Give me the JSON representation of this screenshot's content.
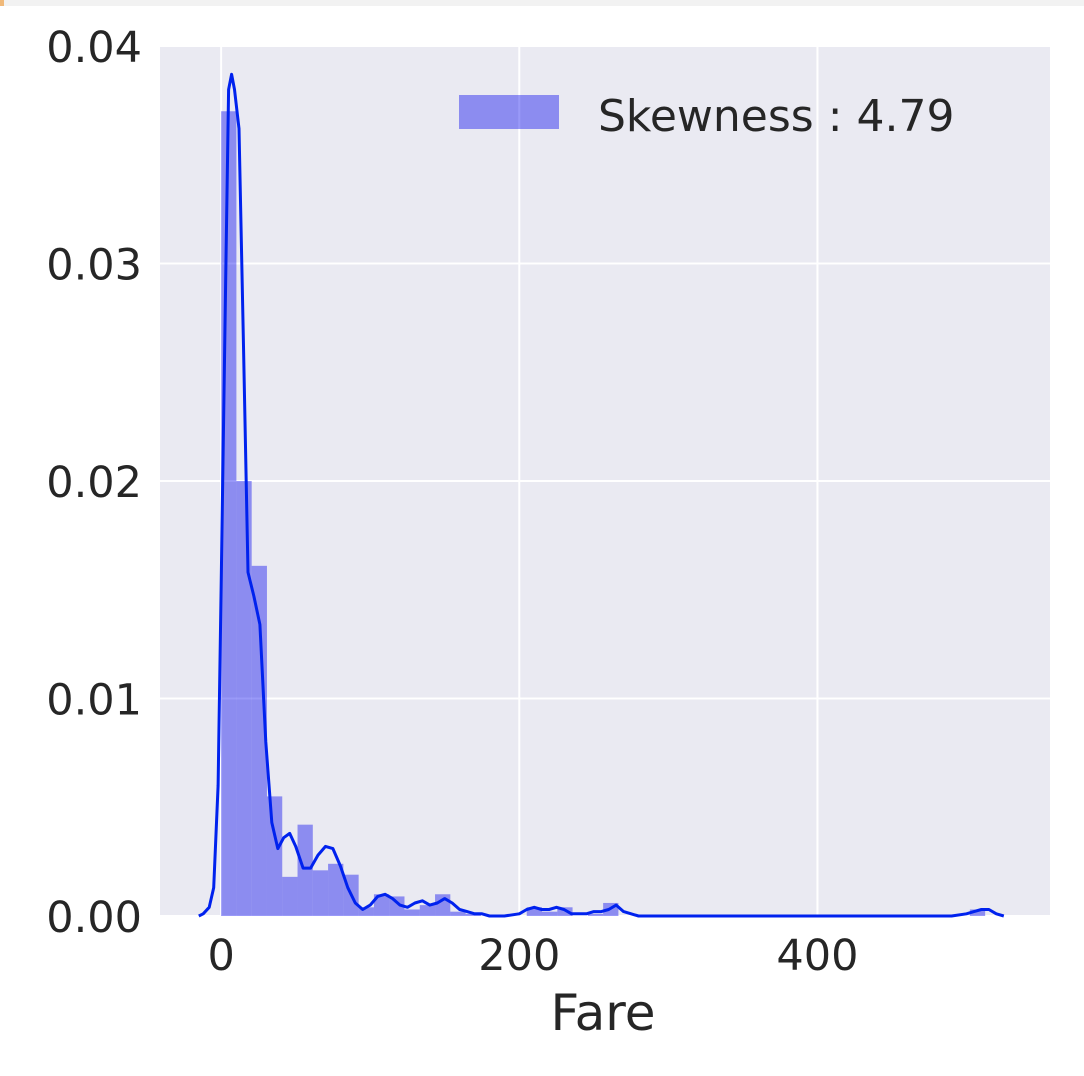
{
  "colors": {
    "plot_background": "#eaeaf2",
    "grid": "#ffffff",
    "bar_fill": "#0000ee",
    "bar_alpha": 0.4,
    "kde_line": "#0022ee",
    "text": "#262626"
  },
  "chart_data": {
    "type": "bar",
    "subtype": "histogram-with-kde",
    "xlabel": "Fare",
    "ylabel": "",
    "title": "",
    "xlim": [
      -41,
      556
    ],
    "ylim": [
      0,
      0.04
    ],
    "xticks": [
      0,
      200,
      400
    ],
    "yticks": [
      0.0,
      0.01,
      0.02,
      0.03,
      0.04
    ],
    "xtick_labels": [
      "0",
      "200",
      "400"
    ],
    "ytick_labels": [
      "0.00",
      "0.01",
      "0.02",
      "0.03",
      "0.04"
    ],
    "grid": true,
    "legend": {
      "position": "top-right",
      "label": "Skewness : 4.79"
    },
    "histogram": {
      "bin_width": 10.25,
      "bin_starts": [
        0,
        10.25,
        20.5,
        30.75,
        41,
        51.25,
        61.5,
        71.75,
        82,
        92.25,
        102.5,
        112.75,
        123,
        133.25,
        143.5,
        153.75,
        164,
        174.25,
        184.5,
        194.75,
        205,
        215.25,
        225.5,
        235.75,
        246,
        256.25,
        266.5,
        276.75,
        287,
        297.25,
        307.5,
        317.75,
        328,
        338.25,
        348.5,
        358.75,
        369,
        379.25,
        389.5,
        399.75,
        410,
        420.25,
        430.5,
        440.75,
        451,
        461.25,
        471.5,
        481.75,
        492,
        502.25
      ],
      "values": [
        0.037,
        0.02,
        0.0161,
        0.0055,
        0.0018,
        0.0042,
        0.0021,
        0.0024,
        0.0019,
        0.0004,
        0.001,
        0.0009,
        0.0003,
        0.0005,
        0.001,
        0.0002,
        0.0001,
        0,
        0,
        0,
        0.0004,
        0.0002,
        0.0004,
        0,
        0.0001,
        0.0006,
        0,
        0,
        0,
        0,
        0,
        0,
        0,
        0,
        0,
        0,
        0,
        0,
        0,
        0,
        0,
        0,
        0,
        0,
        0,
        0,
        0,
        0,
        0,
        0.0003
      ]
    },
    "kde": {
      "x": [
        -15,
        -12,
        -8,
        -5,
        -2,
        0,
        3,
        5,
        7,
        9,
        12,
        15,
        18,
        22,
        26,
        30,
        34,
        38,
        42,
        46,
        50,
        55,
        60,
        65,
        70,
        75,
        80,
        85,
        90,
        95,
        100,
        105,
        110,
        115,
        120,
        125,
        130,
        135,
        140,
        145,
        150,
        155,
        160,
        165,
        170,
        175,
        180,
        190,
        200,
        205,
        210,
        215,
        220,
        225,
        230,
        235,
        240,
        245,
        250,
        255,
        260,
        265,
        270,
        275,
        280,
        300,
        350,
        400,
        450,
        490,
        500,
        505,
        510,
        515,
        520,
        525
      ],
      "y": [
        0,
        0.0001,
        0.0004,
        0.0013,
        0.006,
        0.015,
        0.029,
        0.038,
        0.0387,
        0.038,
        0.0362,
        0.0262,
        0.0158,
        0.0147,
        0.0134,
        0.008,
        0.0043,
        0.0031,
        0.0036,
        0.0038,
        0.0032,
        0.0022,
        0.0022,
        0.0028,
        0.0032,
        0.0031,
        0.0023,
        0.0013,
        0.0006,
        0.0003,
        0.0005,
        0.0009,
        0.001,
        0.0008,
        0.0005,
        0.0004,
        0.0006,
        0.0007,
        0.0005,
        0.0006,
        0.0008,
        0.0006,
        0.0003,
        0.0002,
        0.0001,
        0.0001,
        0,
        0,
        0.0001,
        0.0003,
        0.0004,
        0.0003,
        0.0003,
        0.0004,
        0.0003,
        0.0001,
        0.0001,
        0.0001,
        0.0002,
        0.0002,
        0.0003,
        0.0005,
        0.0002,
        0.0001,
        0,
        0,
        0,
        0,
        0,
        0,
        0.0001,
        0.0002,
        0.0003,
        0.0003,
        0.0001,
        0
      ]
    }
  }
}
